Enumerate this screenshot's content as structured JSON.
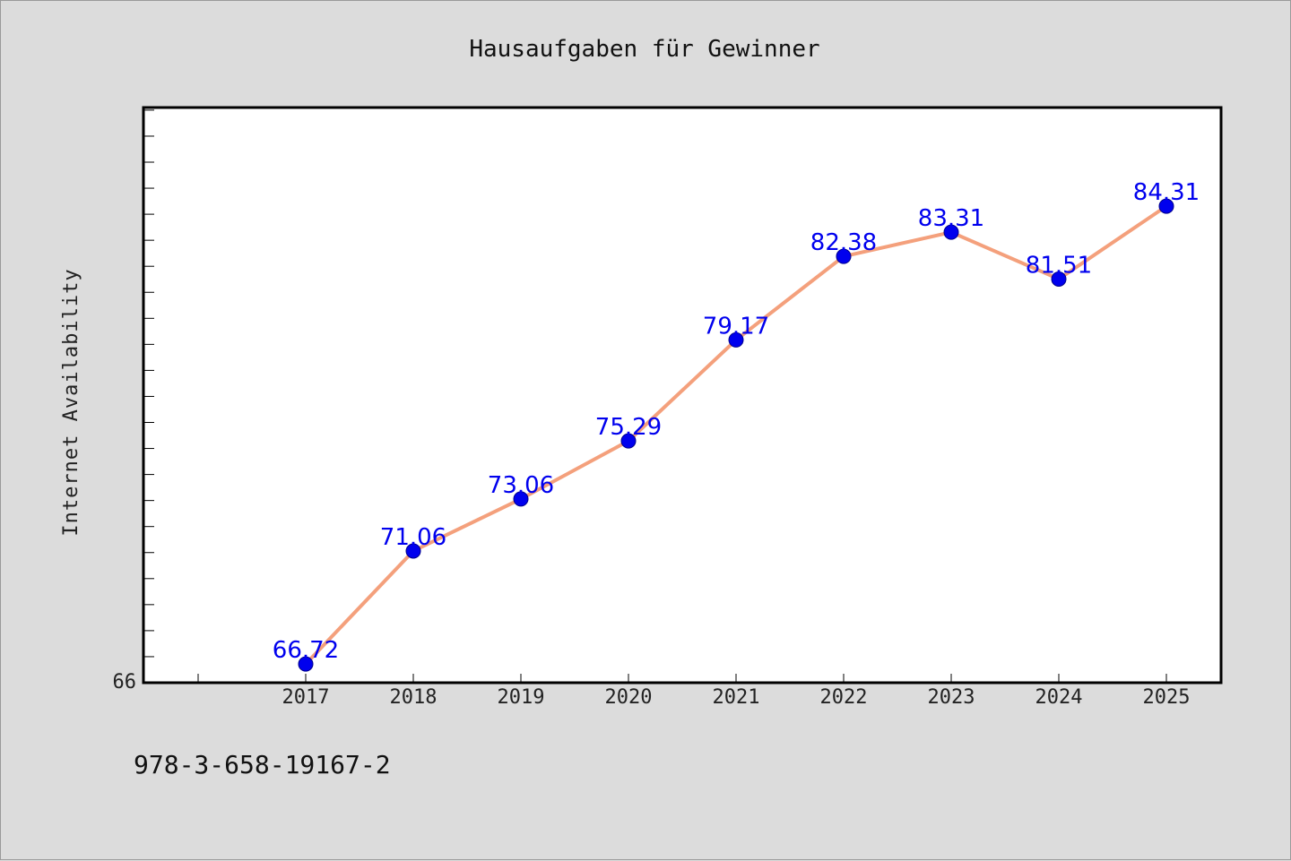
{
  "chart_data": {
    "type": "line",
    "title": "Hausaufgaben für Gewinner",
    "xlabel": "",
    "ylabel": "Internet Availability",
    "categories": [
      "2017",
      "2018",
      "2019",
      "2020",
      "2021",
      "2022",
      "2023",
      "2024",
      "2025"
    ],
    "series": [
      {
        "values": [
          66.72,
          71.06,
          73.06,
          75.29,
          79.17,
          82.38,
          83.31,
          81.51,
          84.31
        ]
      }
    ],
    "data_labels": [
      "66.72",
      "71.06",
      "73.06",
      "75.29",
      "79.17",
      "82.38",
      "83.31",
      "81.51",
      "84.31"
    ],
    "ylim": [
      66,
      88.1
    ],
    "y_tick_labels": [
      "66"
    ],
    "grid": false,
    "line_color": "#f4a07c",
    "marker_color": "#0000ee",
    "label_color": "#0000ee"
  },
  "footer": {
    "text": "978-3-658-19167-2"
  }
}
